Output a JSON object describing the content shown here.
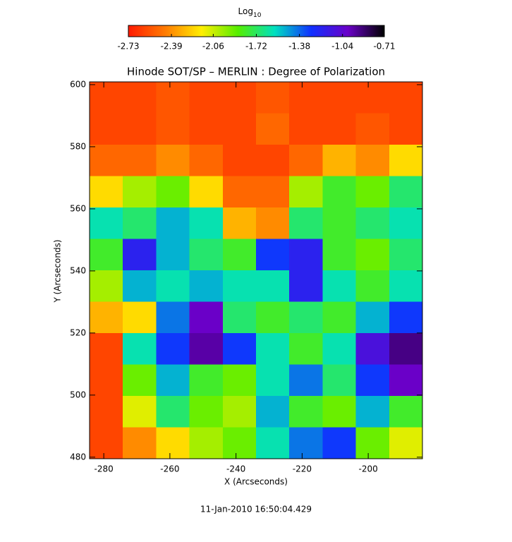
{
  "chart_data": {
    "type": "heatmap",
    "title": "Hinode SOT/SP – MERLIN : Degree of Polarization",
    "xlabel": "X (Arcseconds)",
    "ylabel": "Y (Arcseconds)",
    "footer": "11-Jan-2010 16:50:04.429",
    "colorbar_label": "Log",
    "colorbar_label_sub": "10",
    "xlim": [
      -284.3,
      -183.6
    ],
    "ylim": [
      479.5,
      600.9
    ],
    "xticks": [
      -280,
      -260,
      -240,
      -220,
      -200
    ],
    "yticks": [
      480,
      500,
      520,
      540,
      560,
      580,
      600
    ],
    "zlim": [
      -2.73,
      -0.71
    ],
    "zticks": [
      -2.73,
      -2.39,
      -2.06,
      -1.72,
      -1.38,
      -1.04,
      -0.71
    ],
    "colormap": [
      "#ff1a00",
      "#ff7a00",
      "#ffee00",
      "#55ee00",
      "#00e0c0",
      "#1030ff",
      "#6a00c8",
      "#000000"
    ],
    "z": [
      [
        -2.6,
        -2.6,
        -2.55,
        -2.6,
        -2.6,
        -2.55,
        -2.6,
        -2.6,
        -2.6,
        -2.6
      ],
      [
        -2.6,
        -2.6,
        -2.55,
        -2.6,
        -2.6,
        -2.5,
        -2.6,
        -2.6,
        -2.55,
        -2.6
      ],
      [
        -2.5,
        -2.5,
        -2.4,
        -2.5,
        -2.6,
        -2.6,
        -2.5,
        -2.3,
        -2.4,
        -2.2
      ],
      [
        -2.2,
        -2.0,
        -1.9,
        -2.2,
        -2.5,
        -2.5,
        -2.0,
        -1.8,
        -1.9,
        -1.7
      ],
      [
        -1.6,
        -1.7,
        -1.5,
        -1.6,
        -2.3,
        -2.4,
        -1.7,
        -1.8,
        -1.7,
        -1.6
      ],
      [
        -1.8,
        -1.2,
        -1.5,
        -1.7,
        -1.8,
        -1.3,
        -1.2,
        -1.8,
        -1.9,
        -1.7
      ],
      [
        -2.0,
        -1.5,
        -1.6,
        -1.5,
        -1.6,
        -1.6,
        -1.2,
        -1.6,
        -1.8,
        -1.6
      ],
      [
        -2.3,
        -2.2,
        -1.4,
        -1.0,
        -1.7,
        -1.8,
        -1.7,
        -1.8,
        -1.5,
        -1.3
      ],
      [
        -2.6,
        -1.6,
        -1.3,
        -0.95,
        -1.3,
        -1.6,
        -1.8,
        -1.6,
        -1.1,
        -0.9
      ],
      [
        -2.6,
        -1.9,
        -1.5,
        -1.8,
        -1.9,
        -1.6,
        -1.4,
        -1.7,
        -1.3,
        -1.0
      ],
      [
        -2.6,
        -2.1,
        -1.7,
        -1.9,
        -2.0,
        -1.5,
        -1.8,
        -1.9,
        -1.5,
        -1.8
      ],
      [
        -2.6,
        -2.4,
        -2.2,
        -2.0,
        -1.9,
        -1.6,
        -1.4,
        -1.3,
        -1.9,
        -2.1
      ]
    ]
  }
}
